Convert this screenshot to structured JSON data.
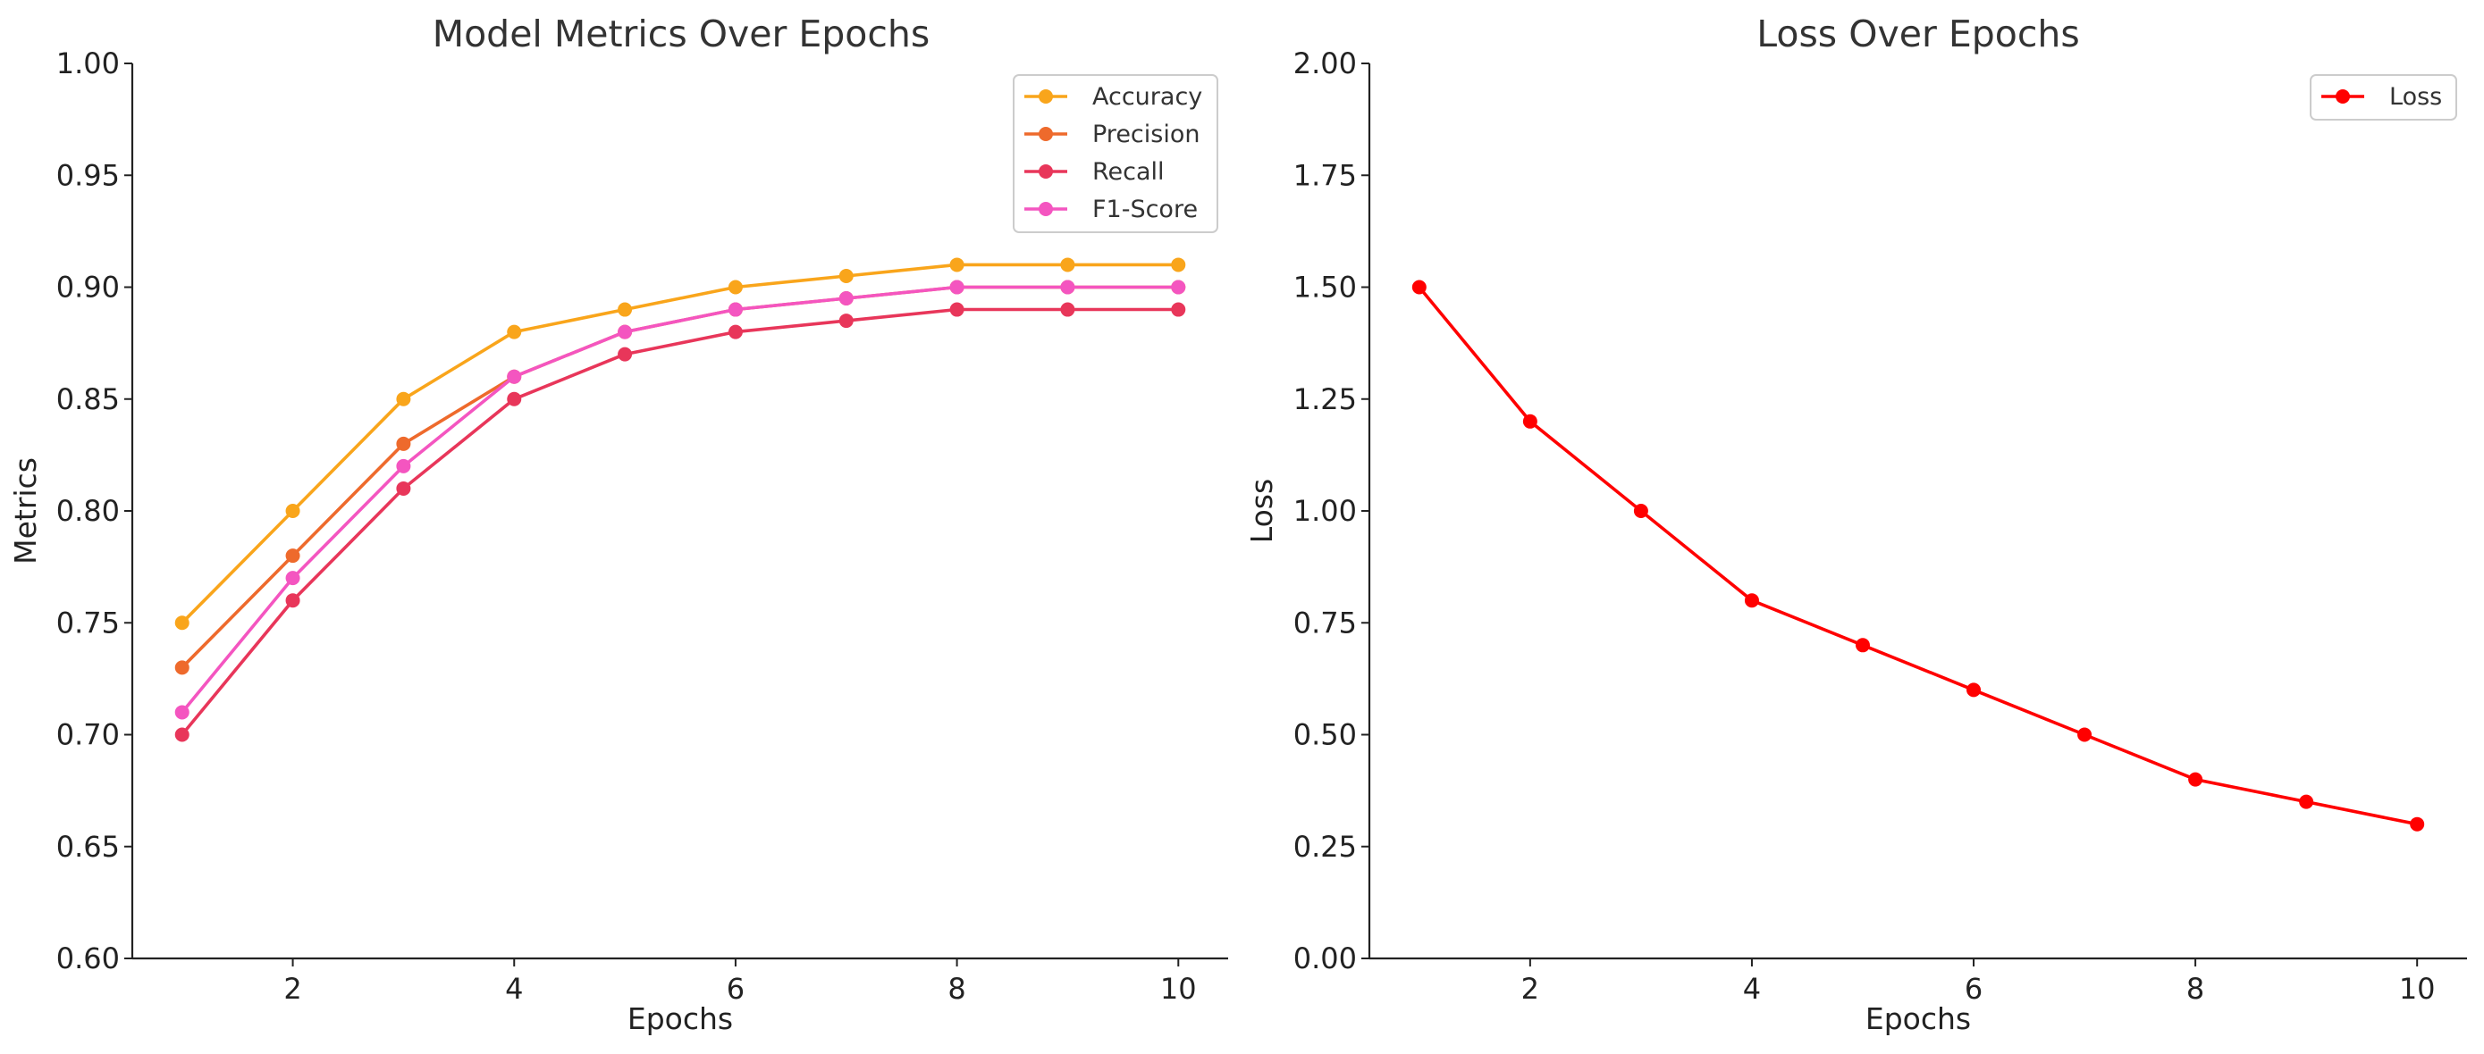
{
  "chart_data": [
    {
      "type": "line",
      "title": "Model Metrics Over Epochs",
      "xlabel": "Epochs",
      "ylabel": "Metrics",
      "x": [
        1,
        2,
        3,
        4,
        5,
        6,
        7,
        8,
        9,
        10
      ],
      "xlim": [
        0.55,
        10.45
      ],
      "ylim": [
        0.6,
        1.0
      ],
      "xticks": [
        2,
        4,
        6,
        8,
        10
      ],
      "xtick_labels": [
        "2",
        "4",
        "6",
        "8",
        "10"
      ],
      "yticks": [
        0.6,
        0.65,
        0.7,
        0.75,
        0.8,
        0.85,
        0.9,
        0.95,
        1.0
      ],
      "ytick_labels": [
        "0.60",
        "0.65",
        "0.70",
        "0.75",
        "0.80",
        "0.85",
        "0.90",
        "0.95",
        "1.00"
      ],
      "grid": false,
      "legend_position": "top-right",
      "series": [
        {
          "name": "Accuracy",
          "color": "#F9A51B",
          "values": [
            0.75,
            0.8,
            0.85,
            0.88,
            0.89,
            0.9,
            0.905,
            0.91,
            0.91,
            0.91
          ]
        },
        {
          "name": "Precision",
          "color": "#EE6A2C",
          "values": [
            0.73,
            0.78,
            0.83,
            0.86,
            0.88,
            0.89,
            0.895,
            0.9,
            0.9,
            0.9
          ]
        },
        {
          "name": "Recall",
          "color": "#E8365A",
          "values": [
            0.7,
            0.76,
            0.81,
            0.85,
            0.87,
            0.88,
            0.885,
            0.89,
            0.89,
            0.89
          ]
        },
        {
          "name": "F1-Score",
          "color": "#F455C0",
          "values": [
            0.71,
            0.77,
            0.82,
            0.86,
            0.88,
            0.89,
            0.895,
            0.9,
            0.9,
            0.9
          ]
        }
      ]
    },
    {
      "type": "line",
      "title": "Loss Over Epochs",
      "xlabel": "Epochs",
      "ylabel": "Loss",
      "x": [
        1,
        2,
        3,
        4,
        5,
        6,
        7,
        8,
        9,
        10
      ],
      "xlim": [
        0.55,
        10.45
      ],
      "ylim": [
        0.0,
        2.0
      ],
      "xticks": [
        2,
        4,
        6,
        8,
        10
      ],
      "xtick_labels": [
        "2",
        "4",
        "6",
        "8",
        "10"
      ],
      "yticks": [
        0.0,
        0.25,
        0.5,
        0.75,
        1.0,
        1.25,
        1.5,
        1.75,
        2.0
      ],
      "ytick_labels": [
        "0.00",
        "0.25",
        "0.50",
        "0.75",
        "1.00",
        "1.25",
        "1.50",
        "1.75",
        "2.00"
      ],
      "grid": false,
      "legend_position": "top-right",
      "series": [
        {
          "name": "Loss",
          "color": "#FF0000",
          "values": [
            1.5,
            1.2,
            1.0,
            0.8,
            0.7,
            0.6,
            0.5,
            0.4,
            0.35,
            0.3
          ]
        }
      ]
    }
  ]
}
